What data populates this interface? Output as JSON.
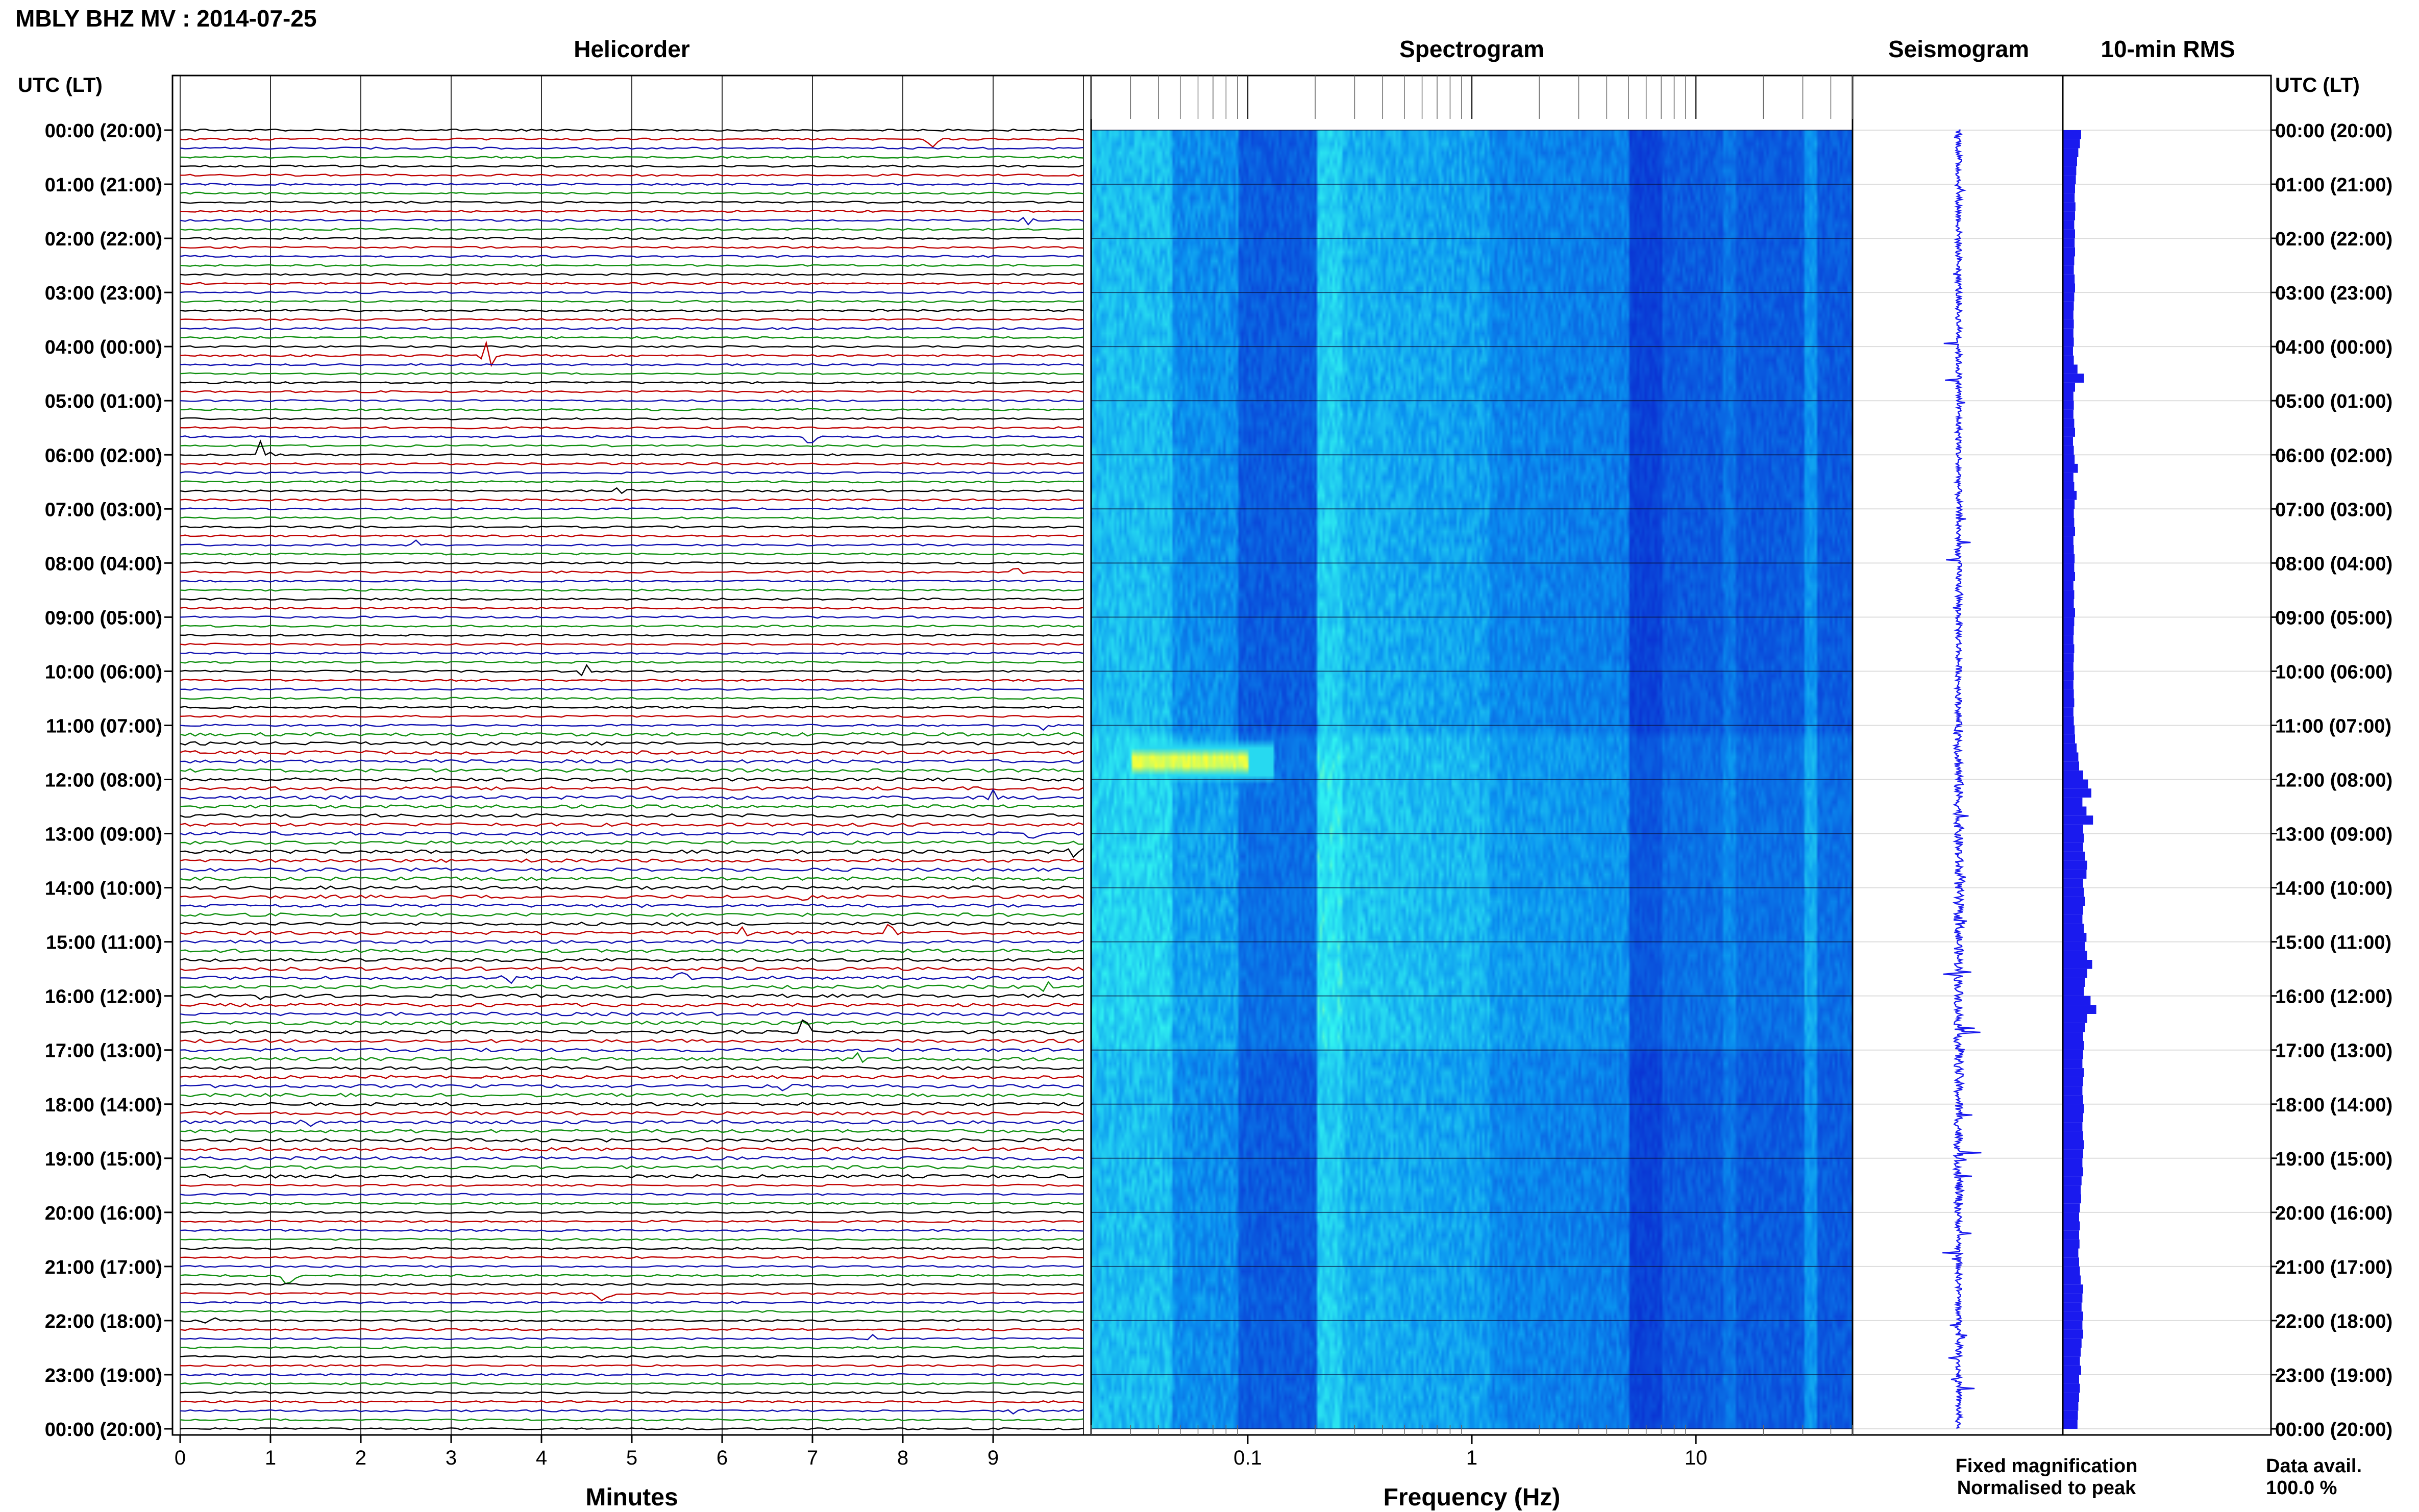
{
  "title": "MBLY BHZ MV : 2014-07-25",
  "panels": {
    "helicorder": "Helicorder",
    "spectrogram": "Spectrogram",
    "seismogram": "Seismogram",
    "rms": "10-min RMS"
  },
  "axis_header_left": "UTC (LT)",
  "axis_header_right": "UTC (LT)",
  "xlabels": {
    "helicorder": "Minutes",
    "spectrogram": "Frequency (Hz)"
  },
  "legend": {
    "fixed": "Fixed magnification",
    "normalised": "Normalised to peak",
    "fixed_color": "#1a1aee",
    "normalised_color": "#e01010"
  },
  "data_avail": {
    "label": "Data avail.",
    "value": "100.0 %"
  },
  "colors": {
    "trace_cycle": [
      "#000000",
      "#c00000",
      "#1010b0",
      "#109010"
    ],
    "spectro_low": "#0a10c8",
    "spectro_high": "#ffff40",
    "seismo_rms": "#1a1aee"
  },
  "chart_data": {
    "type": "helicorder",
    "time_labels": [
      "00:00 (20:00)",
      "01:00 (21:00)",
      "02:00 (22:00)",
      "03:00 (23:00)",
      "04:00 (00:00)",
      "05:00 (01:00)",
      "06:00 (02:00)",
      "07:00 (03:00)",
      "08:00 (04:00)",
      "09:00 (05:00)",
      "10:00 (06:00)",
      "11:00 (07:00)",
      "12:00 (08:00)",
      "13:00 (09:00)",
      "14:00 (10:00)",
      "15:00 (11:00)",
      "16:00 (12:00)",
      "17:00 (13:00)",
      "18:00 (14:00)",
      "19:00 (15:00)",
      "20:00 (16:00)",
      "21:00 (17:00)",
      "22:00 (18:00)",
      "23:00 (19:00)",
      "00:00 (20:00)"
    ],
    "minutes_ticks": [
      "0",
      "1",
      "2",
      "3",
      "4",
      "5",
      "6",
      "7",
      "8",
      "9"
    ],
    "minutes_range": [
      0,
      10
    ],
    "freq_ticks": [
      "0.1",
      "1",
      "10"
    ],
    "freq_tick_values": [
      0.1,
      1,
      10
    ],
    "freq_range": [
      0.02,
      50
    ],
    "freq_scale": "log",
    "rows_per_hour": 6,
    "hours": 24,
    "events": [
      {
        "hour": 0.17,
        "minute": 8.35,
        "amp": 0.9
      },
      {
        "hour": 1.67,
        "minute": 9.35,
        "amp": 0.6
      },
      {
        "hour": 4.17,
        "minute": 3.4,
        "amp": 1.4
      },
      {
        "hour": 5.67,
        "minute": 7.0,
        "amp": 0.8
      },
      {
        "hour": 6.0,
        "minute": 0.9,
        "amp": 1.3
      },
      {
        "hour": 6.67,
        "minute": 4.9,
        "amp": 0.9
      },
      {
        "hour": 7.67,
        "minute": 2.55,
        "amp": 1.0
      },
      {
        "hour": 8.17,
        "minute": 9.3,
        "amp": 0.6
      },
      {
        "hour": 10.0,
        "minute": 4.45,
        "amp": 0.9
      },
      {
        "hour": 11.0,
        "minute": 9.6,
        "amp": 0.6
      },
      {
        "hour": 12.33,
        "minute": 9.05,
        "amp": 1.4
      },
      {
        "hour": 13.0,
        "minute": 9.4,
        "amp": 0.9
      },
      {
        "hour": 13.33,
        "minute": 9.9,
        "amp": 0.7
      },
      {
        "hour": 14.17,
        "minute": 6.9,
        "amp": 1.0
      },
      {
        "hour": 14.83,
        "minute": 6.25,
        "amp": 0.8
      },
      {
        "hour": 14.83,
        "minute": 7.85,
        "amp": 0.9
      },
      {
        "hour": 15.67,
        "minute": 3.6,
        "amp": 0.8
      },
      {
        "hour": 15.67,
        "minute": 5.55,
        "amp": 0.8
      },
      {
        "hour": 15.83,
        "minute": 9.6,
        "amp": 1.0
      },
      {
        "hour": 16.0,
        "minute": 0.85,
        "amp": 0.7
      },
      {
        "hour": 16.67,
        "minute": 6.9,
        "amp": 1.0
      },
      {
        "hour": 17.17,
        "minute": 7.55,
        "amp": 0.8
      },
      {
        "hour": 17.67,
        "minute": 6.7,
        "amp": 0.7
      },
      {
        "hour": 18.33,
        "minute": 1.4,
        "amp": 1.0
      },
      {
        "hour": 21.17,
        "minute": 1.2,
        "amp": 0.8
      },
      {
        "hour": 21.5,
        "minute": 4.7,
        "amp": 0.8
      },
      {
        "hour": 22.0,
        "minute": 0.35,
        "amp": 0.7
      },
      {
        "hour": 22.33,
        "minute": 7.65,
        "amp": 0.6
      },
      {
        "hour": 23.67,
        "minute": 9.25,
        "amp": 0.6
      }
    ],
    "spectro_hotspot": {
      "hour": 11.6,
      "freq_min": 0.03,
      "freq_max": 0.1
    },
    "rms": [
      0.45,
      0.42,
      0.38,
      0.35,
      0.33,
      0.32,
      0.3,
      0.29,
      0.31,
      0.3,
      0.28,
      0.3,
      0.29,
      0.3,
      0.28,
      0.27,
      0.29,
      0.3,
      0.28,
      0.27,
      0.26,
      0.27,
      0.26,
      0.27,
      0.25,
      0.27,
      0.36,
      0.52,
      0.3,
      0.26,
      0.27,
      0.26,
      0.28,
      0.3,
      0.25,
      0.27,
      0.29,
      0.37,
      0.26,
      0.28,
      0.34,
      0.29,
      0.27,
      0.28,
      0.3,
      0.26,
      0.27,
      0.29,
      0.28,
      0.3,
      0.26,
      0.28,
      0.27,
      0.3,
      0.28,
      0.27,
      0.26,
      0.28,
      0.27,
      0.26,
      0.27,
      0.26,
      0.27,
      0.28,
      0.26,
      0.27,
      0.29,
      0.3,
      0.34,
      0.38,
      0.4,
      0.5,
      0.62,
      0.7,
      0.48,
      0.58,
      0.74,
      0.5,
      0.52,
      0.5,
      0.55,
      0.6,
      0.58,
      0.5,
      0.52,
      0.55,
      0.5,
      0.48,
      0.52,
      0.58,
      0.55,
      0.6,
      0.72,
      0.6,
      0.55,
      0.52,
      0.68,
      0.82,
      0.6,
      0.55,
      0.5,
      0.52,
      0.5,
      0.48,
      0.52,
      0.5,
      0.48,
      0.5,
      0.52,
      0.5,
      0.48,
      0.5,
      0.52,
      0.5,
      0.48,
      0.5,
      0.46,
      0.44,
      0.45,
      0.42,
      0.4,
      0.42,
      0.4,
      0.41,
      0.38,
      0.4,
      0.42,
      0.44,
      0.5,
      0.48,
      0.46,
      0.5,
      0.48,
      0.5,
      0.46,
      0.44,
      0.42,
      0.45,
      0.4,
      0.42,
      0.4,
      0.38,
      0.37,
      0.36
    ]
  }
}
